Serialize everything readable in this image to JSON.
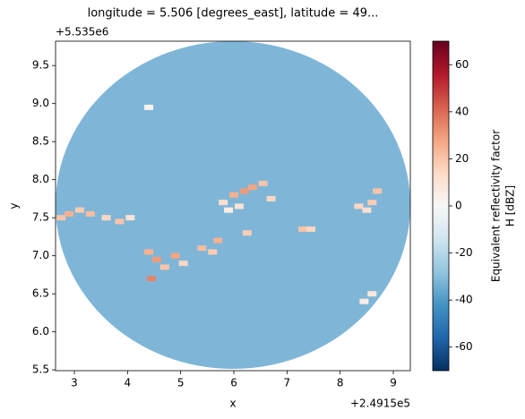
{
  "chart_data": {
    "type": "radar-scan",
    "title": "longitude = 5.506 [degrees_east], latitude = 49...",
    "x_label": "x",
    "y_label": "y",
    "x_offset": "+2.4915e5",
    "y_offset": "+5.535e6",
    "xlim": [
      2.646,
      9.32
    ],
    "ylim": [
      5.49,
      9.82
    ],
    "xticks": [
      3,
      4,
      5,
      6,
      7,
      8,
      9
    ],
    "yticks": [
      5.5,
      {
        "value": 6,
        "label": "6.0"
      },
      6.5,
      {
        "value": 7,
        "label": "7.0"
      },
      7.5,
      {
        "value": 8,
        "label": "8.0"
      },
      8.5,
      {
        "value": 9,
        "label": "9.0"
      },
      9.5
    ],
    "colormap": "RdBu_r",
    "clim": [
      -70,
      70
    ],
    "cticks": [
      -60,
      -40,
      -20,
      0,
      20,
      40,
      60
    ],
    "colorbar_label": [
      "Equivalent reflectivity factor",
      "H [dBZ]"
    ],
    "x": [
      2.75,
      2.9,
      3.1,
      3.3,
      3.6,
      3.85,
      4.05,
      4.4,
      4.55,
      4.7,
      4.9,
      5.05,
      4.45,
      5.4,
      5.6,
      5.8,
      6.0,
      6.2,
      6.35,
      6.55,
      6.7,
      5.9,
      6.1,
      7.3,
      7.45,
      8.35,
      8.5,
      8.6,
      8.7,
      8.45,
      8.6,
      4.4,
      5.7,
      6.25
    ],
    "y": [
      7.5,
      7.55,
      7.6,
      7.55,
      7.5,
      7.45,
      7.5,
      7.05,
      6.95,
      6.85,
      7.0,
      6.9,
      6.7,
      7.1,
      7.05,
      7.7,
      7.8,
      7.85,
      7.9,
      7.95,
      7.75,
      7.6,
      7.65,
      7.35,
      7.35,
      7.65,
      7.6,
      7.7,
      7.85,
      6.4,
      6.5,
      8.95,
      7.2,
      7.3
    ],
    "values": [
      20,
      25,
      18,
      22,
      15,
      20,
      10,
      25,
      30,
      20,
      28,
      15,
      35,
      22,
      18,
      12,
      25,
      30,
      28,
      20,
      15,
      5,
      10,
      20,
      15,
      15,
      12,
      18,
      20,
      5,
      8,
      3,
      25,
      18
    ]
  }
}
